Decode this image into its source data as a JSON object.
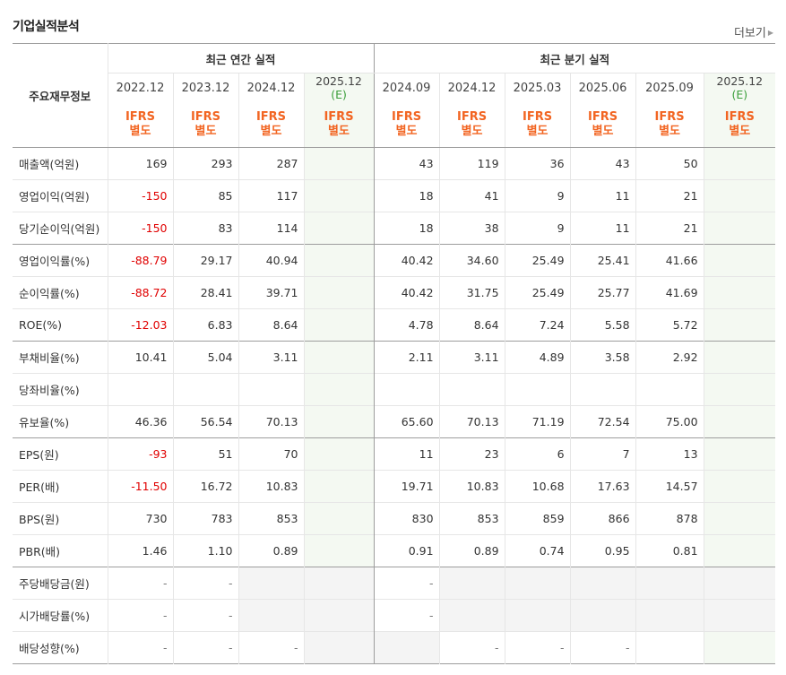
{
  "title": "기업실적분석",
  "more_label": "더보기",
  "header": {
    "label_col": "주요재무정보",
    "annual_group": "최근 연간 실적",
    "quarter_group": "최근 분기 실적",
    "annual_periods": [
      "2022.12",
      "2023.12",
      "2024.12",
      "2025.12"
    ],
    "quarter_periods": [
      "2024.09",
      "2024.12",
      "2025.03",
      "2025.06",
      "2025.09",
      "2025.12"
    ],
    "estimate_mark": "(E)",
    "ifrs": "IFRS",
    "separate": "별도"
  },
  "rows": [
    {
      "label": "매출액(억원)",
      "values": [
        "169",
        "293",
        "287",
        "",
        "43",
        "119",
        "36",
        "43",
        "50",
        ""
      ]
    },
    {
      "label": "영업이익(억원)",
      "values": [
        "-150",
        "85",
        "117",
        "",
        "18",
        "41",
        "9",
        "11",
        "21",
        ""
      ]
    },
    {
      "label": "당기순이익(억원)",
      "values": [
        "-150",
        "83",
        "114",
        "",
        "18",
        "38",
        "9",
        "11",
        "21",
        ""
      ]
    },
    {
      "label": "영업이익률(%)",
      "values": [
        "-88.79",
        "29.17",
        "40.94",
        "",
        "40.42",
        "34.60",
        "25.49",
        "25.41",
        "41.66",
        ""
      ]
    },
    {
      "label": "순이익률(%)",
      "values": [
        "-88.72",
        "28.41",
        "39.71",
        "",
        "40.42",
        "31.75",
        "25.49",
        "25.77",
        "41.69",
        ""
      ]
    },
    {
      "label": "ROE(%)",
      "values": [
        "-12.03",
        "6.83",
        "8.64",
        "",
        "4.78",
        "8.64",
        "7.24",
        "5.58",
        "5.72",
        ""
      ]
    },
    {
      "label": "부채비율(%)",
      "values": [
        "10.41",
        "5.04",
        "3.11",
        "",
        "2.11",
        "3.11",
        "4.89",
        "3.58",
        "2.92",
        ""
      ]
    },
    {
      "label": "당좌비율(%)",
      "values": [
        "",
        "",
        "",
        "",
        "",
        "",
        "",
        "",
        "",
        ""
      ]
    },
    {
      "label": "유보율(%)",
      "values": [
        "46.36",
        "56.54",
        "70.13",
        "",
        "65.60",
        "70.13",
        "71.19",
        "72.54",
        "75.00",
        ""
      ]
    },
    {
      "label": "EPS(원)",
      "values": [
        "-93",
        "51",
        "70",
        "",
        "11",
        "23",
        "6",
        "7",
        "13",
        ""
      ]
    },
    {
      "label": "PER(배)",
      "values": [
        "-11.50",
        "16.72",
        "10.83",
        "",
        "19.71",
        "10.83",
        "10.68",
        "17.63",
        "14.57",
        ""
      ]
    },
    {
      "label": "BPS(원)",
      "values": [
        "730",
        "783",
        "853",
        "",
        "830",
        "853",
        "859",
        "866",
        "878",
        ""
      ]
    },
    {
      "label": "PBR(배)",
      "values": [
        "1.46",
        "1.10",
        "0.89",
        "",
        "0.91",
        "0.89",
        "0.74",
        "0.95",
        "0.81",
        ""
      ]
    },
    {
      "label": "주당배당금(원)",
      "values": [
        "-",
        "-",
        "",
        "",
        "-",
        "",
        "",
        "",
        "",
        ""
      ]
    },
    {
      "label": "시가배당률(%)",
      "values": [
        "-",
        "-",
        "",
        "",
        "-",
        "",
        "",
        "",
        "",
        ""
      ]
    },
    {
      "label": "배당성향(%)",
      "values": [
        "-",
        "-",
        "-",
        "",
        "",
        "-",
        "-",
        "-",
        "",
        ""
      ]
    }
  ],
  "colors": {
    "negative": "#e00000",
    "ifrs": "#f26522",
    "estimate": "#3a9e3a"
  }
}
